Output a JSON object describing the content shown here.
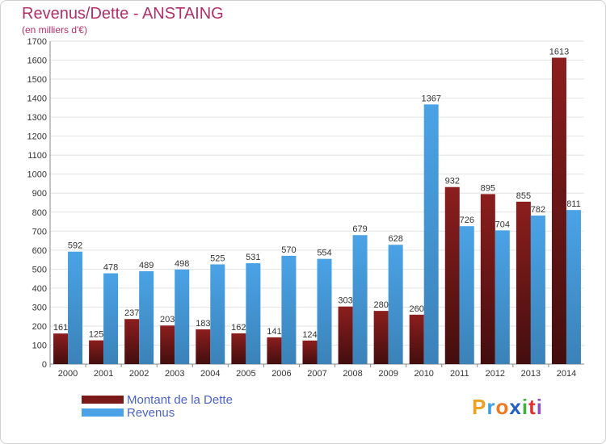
{
  "title": "Revenus/Dette - ANSTAING",
  "subtitle": "(en milliers d'€)",
  "logo": {
    "letters": [
      "P",
      "r",
      "o",
      "x",
      "i",
      "t",
      "i"
    ],
    "colors": [
      "#f0a020",
      "#3aa0e0",
      "#f07820",
      "#2060c0",
      "#40b040",
      "#e03030",
      "#9050c0"
    ]
  },
  "chart_data": {
    "type": "bar",
    "categories": [
      "2000",
      "2001",
      "2002",
      "2003",
      "2004",
      "2005",
      "2006",
      "2007",
      "2008",
      "2009",
      "2010",
      "2011",
      "2012",
      "2013",
      "2014"
    ],
    "series": [
      {
        "name": "Montant de la Dette",
        "color": "#7a1a1a",
        "values": [
          161,
          125,
          237,
          203,
          183,
          162,
          141,
          124,
          303,
          280,
          260,
          932,
          895,
          855,
          1613
        ]
      },
      {
        "name": "Revenus",
        "color": "#4aa3e6",
        "values": [
          592,
          478,
          489,
          498,
          525,
          531,
          570,
          554,
          679,
          628,
          1367,
          726,
          704,
          782,
          811
        ]
      }
    ],
    "ylim": [
      0,
      1700
    ],
    "yticks": [
      0,
      100,
      200,
      300,
      400,
      500,
      600,
      700,
      800,
      900,
      1000,
      1100,
      1200,
      1300,
      1400,
      1500,
      1600,
      1700
    ],
    "grid": true,
    "legend": "bottom-left"
  }
}
